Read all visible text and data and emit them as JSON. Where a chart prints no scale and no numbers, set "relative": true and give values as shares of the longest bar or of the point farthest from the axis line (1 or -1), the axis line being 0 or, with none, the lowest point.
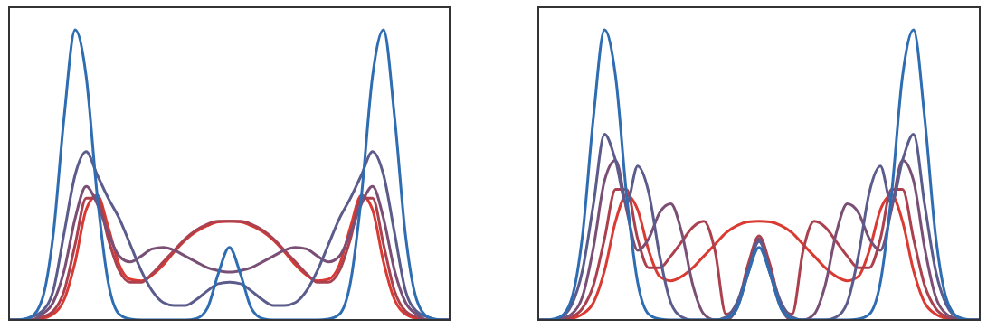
{
  "chart_data": [
    {
      "type": "line",
      "relative": true,
      "categories": [
        null,
        null,
        null,
        null,
        null,
        null,
        null,
        null,
        null,
        null,
        null,
        null,
        null,
        null,
        null,
        null,
        null,
        null,
        null,
        null,
        null,
        null,
        null,
        null,
        null,
        null,
        null,
        null,
        null,
        null,
        null,
        null,
        null,
        null,
        null,
        null,
        null,
        null,
        null,
        null,
        null
      ],
      "series": [
        {
          "color": "#d93a32",
          "values": [
            null,
            null,
            0,
            0.005,
            0.02,
            0.07,
            0.2,
            0.38,
            0.43,
            0.32,
            0.19,
            0.14,
            0.135,
            0.155,
            0.19,
            0.235,
            0.275,
            0.305,
            0.325,
            0.338,
            0.34,
            0.338,
            0.325,
            0.305,
            0.275,
            0.235,
            0.19,
            0.155,
            0.135,
            0.14,
            0.19,
            0.32,
            0.43,
            0.38,
            0.2,
            0.07,
            0.02,
            0.005,
            0,
            null,
            null
          ]
        },
        {
          "color": "#ab414f",
          "values": [
            0,
            0,
            0,
            0.01,
            0.03,
            0.1,
            0.26,
            0.42,
            0.42,
            0.28,
            0.17,
            0.13,
            0.13,
            0.16,
            0.2,
            0.24,
            0.28,
            0.31,
            0.33,
            0.34,
            0.34,
            0.34,
            0.33,
            0.31,
            0.28,
            0.24,
            0.2,
            0.16,
            0.13,
            0.13,
            0.17,
            0.28,
            0.42,
            0.42,
            0.26,
            0.1,
            0.03,
            0.01,
            0,
            0,
            0
          ]
        },
        {
          "color": "#7a4f75",
          "values": [
            0,
            0,
            0,
            0.02,
            0.06,
            0.17,
            0.35,
            0.46,
            0.4,
            0.3,
            0.22,
            0.2,
            0.22,
            0.245,
            0.25,
            0.24,
            0.22,
            0.2,
            0.18,
            0.17,
            0.165,
            0.17,
            0.18,
            0.2,
            0.22,
            0.24,
            0.25,
            0.245,
            0.22,
            0.2,
            0.22,
            0.3,
            0.4,
            0.46,
            0.35,
            0.17,
            0.06,
            0.02,
            0,
            0,
            0
          ]
        },
        {
          "color": "#5b5b8c",
          "values": [
            0,
            0,
            0.01,
            0.03,
            0.1,
            0.3,
            0.5,
            0.58,
            0.5,
            0.42,
            0.35,
            0.26,
            0.17,
            0.1,
            0.06,
            0.05,
            0.05,
            0.07,
            0.1,
            0.125,
            0.13,
            0.125,
            0.1,
            0.07,
            0.05,
            0.05,
            0.06,
            0.1,
            0.17,
            0.26,
            0.35,
            0.42,
            0.5,
            0.58,
            0.5,
            0.3,
            0.1,
            0.03,
            0.01,
            0,
            0
          ]
        },
        {
          "color": "#2f6db3",
          "values": [
            0,
            0.001,
            0.011,
            0.07,
            0.29,
            0.7,
            1,
            0.84,
            0.43,
            0.13,
            0.02,
            0.003,
            0,
            0,
            0,
            0,
            0,
            0.005,
            0.04,
            0.16,
            0.25,
            0.16,
            0.04,
            0.005,
            0,
            0,
            0,
            0,
            0,
            0.003,
            0.02,
            0.13,
            0.43,
            0.84,
            1,
            0.7,
            0.29,
            0.07,
            0.011,
            0.001,
            0
          ]
        }
      ]
    },
    {
      "type": "line",
      "relative": true,
      "categories": [
        null,
        null,
        null,
        null,
        null,
        null,
        null,
        null,
        null,
        null,
        null,
        null,
        null,
        null,
        null,
        null,
        null,
        null,
        null,
        null,
        null,
        null,
        null,
        null,
        null,
        null,
        null,
        null,
        null,
        null,
        null,
        null,
        null,
        null,
        null,
        null,
        null,
        null,
        null,
        null,
        null
      ],
      "series": [
        {
          "color": "#d93a32",
          "values": [
            null,
            null,
            0,
            0.005,
            0.02,
            0.06,
            0.17,
            0.34,
            0.43,
            0.38,
            0.24,
            0.15,
            0.135,
            0.15,
            0.18,
            0.22,
            0.26,
            0.3,
            0.325,
            0.338,
            0.34,
            0.338,
            0.325,
            0.3,
            0.26,
            0.22,
            0.18,
            0.15,
            0.135,
            0.15,
            0.24,
            0.38,
            0.43,
            0.34,
            0.17,
            0.06,
            0.02,
            0.005,
            0,
            null,
            null
          ]
        },
        {
          "color": "#ab414f",
          "values": [
            0,
            0,
            0,
            0.01,
            0.04,
            0.12,
            0.28,
            0.45,
            0.45,
            0.28,
            0.18,
            0.18,
            0.22,
            0.27,
            0.32,
            0.34,
            0.24,
            0.02,
            0.05,
            0.19,
            0.29,
            0.19,
            0.05,
            0.02,
            0.24,
            0.34,
            0.32,
            0.27,
            0.22,
            0.18,
            0.18,
            0.28,
            0.45,
            0.45,
            0.28,
            0.12,
            0.04,
            0.01,
            0,
            0,
            0
          ]
        },
        {
          "color": "#7a4f75",
          "values": [
            0,
            0,
            0.005,
            0.02,
            0.08,
            0.25,
            0.48,
            0.55,
            0.38,
            0.24,
            0.28,
            0.37,
            0.4,
            0.3,
            0.12,
            0.02,
            0,
            0,
            0.04,
            0.16,
            0.28,
            0.16,
            0.04,
            0,
            0,
            0.02,
            0.12,
            0.3,
            0.4,
            0.37,
            0.28,
            0.24,
            0.38,
            0.55,
            0.48,
            0.25,
            0.08,
            0.02,
            0.005,
            0,
            0
          ]
        },
        {
          "color": "#5b5b8c",
          "values": [
            0,
            0,
            0.01,
            0.05,
            0.17,
            0.4,
            0.64,
            0.55,
            0.4,
            0.53,
            0.44,
            0.22,
            0.06,
            0.01,
            0,
            0,
            0,
            0.01,
            0.06,
            0.17,
            0.27,
            0.17,
            0.06,
            0.01,
            0,
            0,
            0,
            0.01,
            0.06,
            0.22,
            0.44,
            0.53,
            0.4,
            0.55,
            0.64,
            0.4,
            0.17,
            0.05,
            0.01,
            0,
            0
          ]
        },
        {
          "color": "#2f6db3",
          "values": [
            0,
            0.001,
            0.011,
            0.07,
            0.29,
            0.7,
            1,
            0.84,
            0.43,
            0.13,
            0.02,
            0.003,
            0,
            0,
            0,
            0,
            0,
            0.005,
            0.04,
            0.16,
            0.25,
            0.16,
            0.04,
            0.005,
            0,
            0,
            0,
            0,
            0,
            0.003,
            0.02,
            0.13,
            0.43,
            0.84,
            1,
            0.7,
            0.29,
            0.07,
            0.011,
            0.001,
            0
          ]
        }
      ]
    }
  ]
}
